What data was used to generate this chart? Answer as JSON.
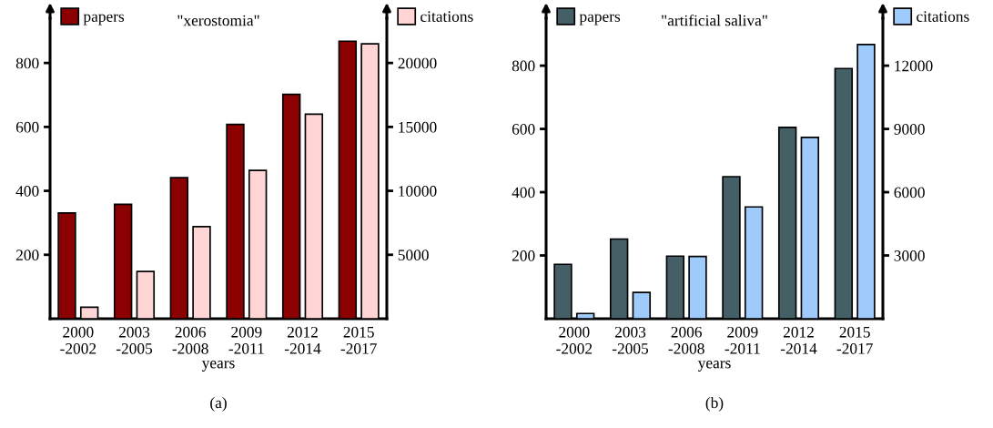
{
  "chart_data": [
    {
      "type": "bar",
      "title": "\"xerostomia\"",
      "xlabel": "years",
      "categories": [
        "2000\n-2002",
        "2003\n-2005",
        "2006\n-2008",
        "2009\n-2011",
        "2012\n-2014",
        "2015\n-2017"
      ],
      "series": [
        {
          "name": "papers",
          "color": "#8b0000",
          "values": [
            331,
            358,
            441,
            608,
            702,
            868
          ]
        },
        {
          "name": "citations",
          "color": "#ffd5d5",
          "axis": "y2",
          "values": [
            900,
            3700,
            7200,
            11600,
            16000,
            21500
          ]
        }
      ],
      "ylim": [
        0,
        940
      ],
      "yticks": [
        200,
        400,
        600,
        800
      ],
      "y2lim": [
        0,
        23500
      ],
      "y2ticks": [
        5000,
        10000,
        15000,
        20000
      ],
      "legend": "top",
      "grid": false,
      "annotations": [
        "(a)"
      ]
    },
    {
      "type": "bar",
      "title": "\"artificial saliva\"",
      "xlabel": "years",
      "categories": [
        "2000\n-2002",
        "2003\n-2005",
        "2006\n-2008",
        "2009\n-2011",
        "2012\n-2014",
        "2015\n-2017"
      ],
      "series": [
        {
          "name": "papers",
          "color": "#455f66",
          "values": [
            172,
            252,
            198,
            449,
            605,
            791
          ]
        },
        {
          "name": "citations",
          "color": "#9fcbfc",
          "axis": "y2",
          "values": [
            250,
            1250,
            2950,
            5300,
            8600,
            13000
          ]
        }
      ],
      "ylim": [
        0,
        950
      ],
      "yticks": [
        200,
        400,
        600,
        800
      ],
      "y2lim": [
        0,
        14250
      ],
      "y2ticks": [
        3000,
        6000,
        9000,
        12000
      ],
      "legend": "top",
      "grid": false,
      "annotations": [
        "(b)"
      ]
    }
  ]
}
